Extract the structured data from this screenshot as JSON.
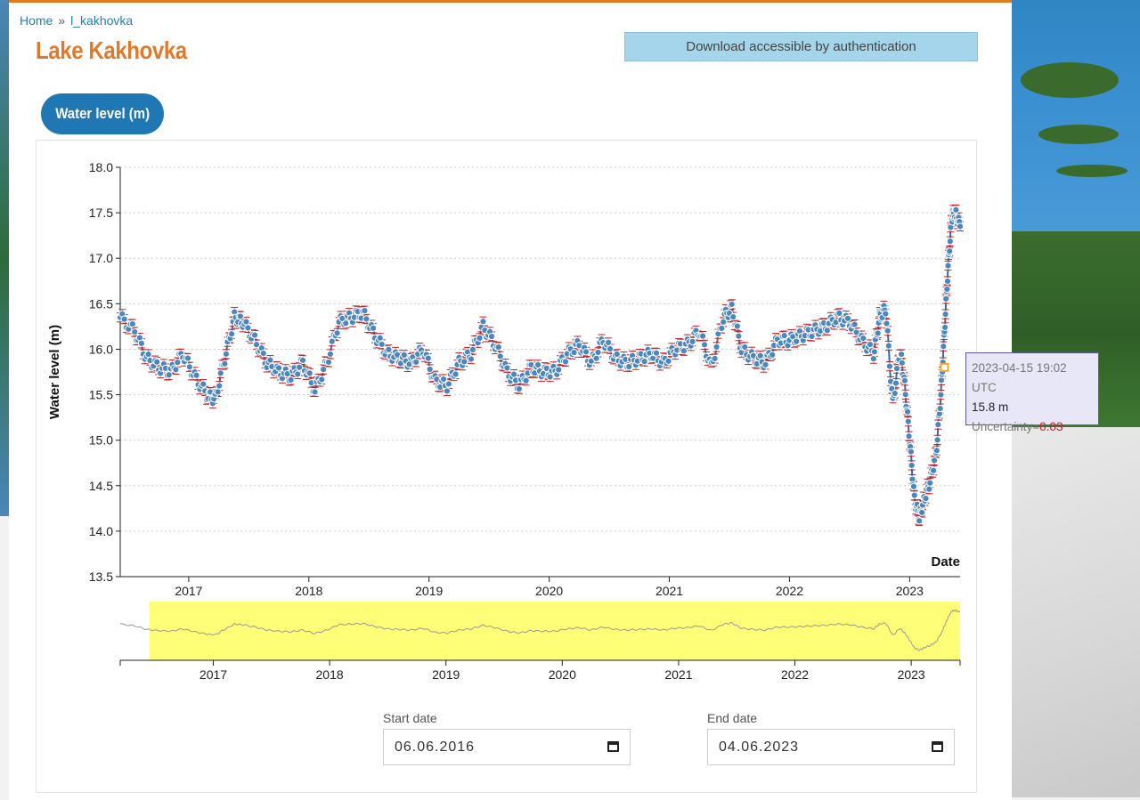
{
  "breadcrumb": {
    "home": "Home",
    "separator": "»",
    "current": "l_kakhovka"
  },
  "page_title": "Lake Kakhovka",
  "download_label": "Download accessible by authentication",
  "tab_label": "Water level (m)",
  "tooltip": {
    "date": "2023-04-15 19:02 UTC",
    "value": "15.8 m",
    "uncertainty_label": "Uncertainty=",
    "uncertainty_value": "0.03"
  },
  "start_date": {
    "label": "Start date",
    "value": "06.06.2016"
  },
  "end_date": {
    "label": "End date",
    "value": "04.06.2023"
  },
  "colors": {
    "accent": "#e07a2a",
    "series": "#2f6fa8",
    "marker": "#4a86c0",
    "error_bar": "#c0282d",
    "brush": "#ffff77",
    "highlight": "#f5a623"
  },
  "chart_data": {
    "type": "line",
    "ylabel": "Water level (m)",
    "xlabel": "Date",
    "ylim": [
      13.5,
      18.0
    ],
    "yticks": [
      "13.5",
      "14.0",
      "14.5",
      "15.0",
      "15.5",
      "16.0",
      "16.5",
      "17.0",
      "17.5",
      "18.0"
    ],
    "xlim": [
      2016.43,
      2023.42
    ],
    "xticks": [
      "2017",
      "2018",
      "2019",
      "2020",
      "2021",
      "2022",
      "2023"
    ],
    "grid": "horizontal dotted",
    "series": [
      {
        "uncertainty_typical": 0.05,
        "x": [
          2016.43,
          2016.55,
          2016.65,
          2016.75,
          2016.85,
          2016.95,
          2017.05,
          2017.15,
          2017.22,
          2017.3,
          2017.38,
          2017.45,
          2017.55,
          2017.65,
          2017.75,
          2017.85,
          2017.95,
          2018.05,
          2018.15,
          2018.25,
          2018.35,
          2018.45,
          2018.55,
          2018.65,
          2018.75,
          2018.85,
          2018.95,
          2019.05,
          2019.15,
          2019.25,
          2019.35,
          2019.45,
          2019.55,
          2019.65,
          2019.75,
          2019.85,
          2019.95,
          2020.05,
          2020.15,
          2020.25,
          2020.35,
          2020.45,
          2020.55,
          2020.65,
          2020.75,
          2020.85,
          2020.95,
          2021.05,
          2021.15,
          2021.25,
          2021.35,
          2021.45,
          2021.52,
          2021.6,
          2021.7,
          2021.8,
          2021.9,
          2022.0,
          2022.1,
          2022.2,
          2022.3,
          2022.4,
          2022.5,
          2022.6,
          2022.7,
          2022.75,
          2022.8,
          2022.86,
          2022.92,
          2022.96,
          2023.0,
          2023.04,
          2023.08,
          2023.12,
          2023.17,
          2023.22,
          2023.26,
          2023.29,
          2023.32,
          2023.35,
          2023.38,
          2023.42
        ],
        "y": [
          16.35,
          16.2,
          15.9,
          15.8,
          15.75,
          15.95,
          15.7,
          15.5,
          15.45,
          15.9,
          16.35,
          16.3,
          16.1,
          15.85,
          15.75,
          15.7,
          15.85,
          15.55,
          15.85,
          16.3,
          16.35,
          16.4,
          16.15,
          15.95,
          15.9,
          15.85,
          16.0,
          15.65,
          15.6,
          15.85,
          15.95,
          16.25,
          16.05,
          15.75,
          15.6,
          15.8,
          15.75,
          15.75,
          15.95,
          16.05,
          15.85,
          16.1,
          15.9,
          15.85,
          15.9,
          15.95,
          15.85,
          16.0,
          16.05,
          16.2,
          15.8,
          16.35,
          16.45,
          16.0,
          15.9,
          15.85,
          16.1,
          16.1,
          16.15,
          16.2,
          16.25,
          16.35,
          16.3,
          16.1,
          15.95,
          16.35,
          16.45,
          15.4,
          16.0,
          15.6,
          15.0,
          14.35,
          14.15,
          14.35,
          14.55,
          14.85,
          15.5,
          16.2,
          16.9,
          17.45,
          17.5,
          17.35
        ]
      }
    ],
    "navigator": {
      "xticks": [
        "2017",
        "2018",
        "2019",
        "2020",
        "2021",
        "2022",
        "2023"
      ],
      "selection": "highlighted"
    }
  }
}
